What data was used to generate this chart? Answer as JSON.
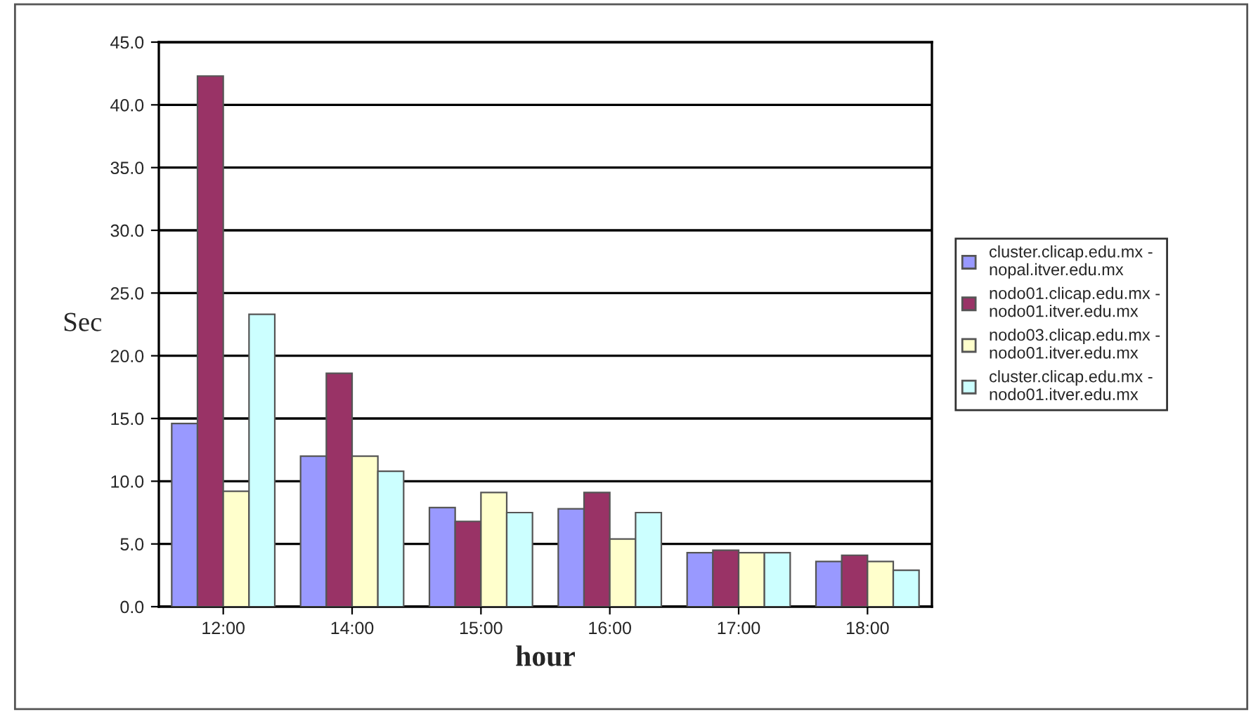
{
  "chart_data": {
    "type": "bar",
    "xlabel": "hour",
    "ylabel": "Sec",
    "categories": [
      "12:00",
      "14:00",
      "15:00",
      "16:00",
      "17:00",
      "18:00"
    ],
    "series": [
      {
        "name": "cluster.clicap.edu.mx -\nnopal.itver.edu.mx",
        "color": "#9999ff",
        "values": [
          14.6,
          12.0,
          7.9,
          7.8,
          4.3,
          3.6
        ]
      },
      {
        "name": "nodo01.clicap.edu.mx -\nnodo01.itver.edu.mx",
        "color": "#993366",
        "values": [
          42.3,
          18.6,
          6.8,
          9.1,
          4.5,
          4.1
        ]
      },
      {
        "name": "nodo03.clicap.edu.mx -\nnodo01.itver.edu.mx",
        "color": "#ffffcc",
        "values": [
          9.2,
          12.0,
          9.1,
          5.4,
          4.3,
          3.6
        ]
      },
      {
        "name": "cluster.clicap.edu.mx -\nnodo01.itver.edu.mx",
        "color": "#ccffff",
        "values": [
          23.3,
          10.8,
          7.5,
          7.5,
          4.3,
          2.9
        ]
      }
    ],
    "ylim": [
      0,
      45
    ],
    "yticks": [
      {
        "value": 0,
        "label": "0.0"
      },
      {
        "value": 5,
        "label": "5.0"
      },
      {
        "value": 10,
        "label": "10.0"
      },
      {
        "value": 15,
        "label": "15.0"
      },
      {
        "value": 20,
        "label": "20.0"
      },
      {
        "value": 25,
        "label": "25.0"
      },
      {
        "value": 30,
        "label": "30.0"
      },
      {
        "value": 35,
        "label": "35.0"
      },
      {
        "value": 40,
        "label": "40.0"
      },
      {
        "value": 45,
        "label": "45.0"
      }
    ],
    "grid": "y",
    "legend": "right"
  }
}
